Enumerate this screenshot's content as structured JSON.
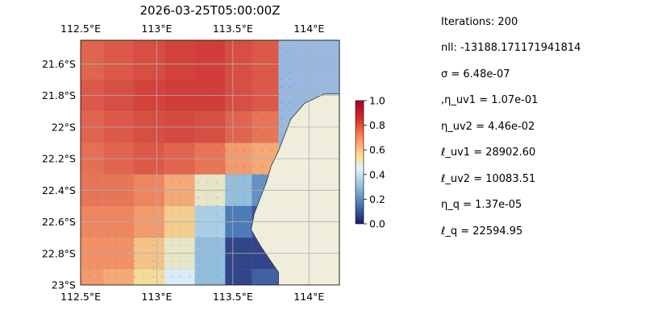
{
  "chart_data": {
    "type": "heatmap",
    "title": "2026-03-25T05:00:00Z",
    "x_ticks": [
      "112.5°E",
      "113°E",
      "113.5°E",
      "114°E"
    ],
    "x_tick_values": [
      112.5,
      113.0,
      113.5,
      114.0
    ],
    "y_ticks": [
      "21.6°S",
      "21.8°S",
      "22°S",
      "22.2°S",
      "22.4°S",
      "22.6°S",
      "22.8°S",
      "23°S"
    ],
    "y_tick_values": [
      -21.6,
      -21.8,
      -22.0,
      -22.2,
      -22.4,
      -22.6,
      -22.8,
      -23.0
    ],
    "xlim": [
      112.5,
      114.2
    ],
    "ylim": [
      -23.0,
      -21.45
    ],
    "grid": true,
    "colorbar": {
      "ticks": [
        "0.0",
        "0.2",
        "0.4",
        "0.6",
        "0.8",
        "1.0"
      ],
      "tick_values": [
        0.0,
        0.2,
        0.4,
        0.6,
        0.8,
        1.0
      ],
      "range": [
        0.0,
        1.0
      ],
      "cmap": "RdYlBu_r",
      "placement": "right"
    },
    "coast_lon": [
      [
        -21.79,
        114.1
      ],
      [
        -21.85,
        113.97
      ],
      [
        -21.95,
        113.88
      ],
      [
        -22.05,
        113.84
      ],
      [
        -22.15,
        113.8
      ],
      [
        -22.25,
        113.75
      ],
      [
        -22.35,
        113.72
      ],
      [
        -22.45,
        113.68
      ],
      [
        -22.55,
        113.64
      ],
      [
        -22.65,
        113.62
      ],
      [
        -22.75,
        113.68
      ],
      [
        -22.85,
        113.75
      ],
      [
        -22.92,
        113.8
      ],
      [
        -23.0,
        113.8
      ]
    ],
    "field_columns": [
      {
        "lon": 112.55,
        "values": [
          0.78,
          0.8,
          0.78,
          0.76,
          0.75,
          0.72,
          0.7,
          0.68
        ]
      },
      {
        "lon": 112.75,
        "values": [
          0.8,
          0.82,
          0.8,
          0.78,
          0.75,
          0.72,
          0.7,
          0.65
        ]
      },
      {
        "lon": 112.95,
        "values": [
          0.82,
          0.84,
          0.82,
          0.8,
          0.72,
          0.68,
          0.6,
          0.55
        ]
      },
      {
        "lon": 113.15,
        "values": [
          0.84,
          0.85,
          0.83,
          0.78,
          0.65,
          0.58,
          0.5,
          0.45
        ]
      },
      {
        "lon": 113.35,
        "values": [
          0.85,
          0.85,
          0.82,
          0.75,
          0.5,
          0.35,
          0.3,
          0.3
        ]
      },
      {
        "lon": 113.55,
        "values": [
          0.82,
          0.82,
          0.78,
          0.68,
          0.3,
          0.15,
          0.05,
          0.05
        ]
      },
      {
        "lon": 113.7,
        "values": [
          0.8,
          0.8,
          0.75,
          0.65,
          0.2,
          0.08,
          0.05,
          0.1
        ]
      }
    ],
    "colors": {
      "ocean": "#99b8e0",
      "land": "#efeddc",
      "coastline": "#333333",
      "grid": "#b0b0b0"
    }
  },
  "stats": [
    "Iterations: 200",
    "nll: -13188.171171941814",
    "σ = 6.48e-07",
    ",η_uv1 = 1.07e-01",
    "η_uv2 = 4.46e-02",
    "ℓ_uv1 = 28902.60",
    "ℓ_uv2 = 10083.51",
    "η_q = 1.37e-05",
    "ℓ_q = 22594.95"
  ]
}
